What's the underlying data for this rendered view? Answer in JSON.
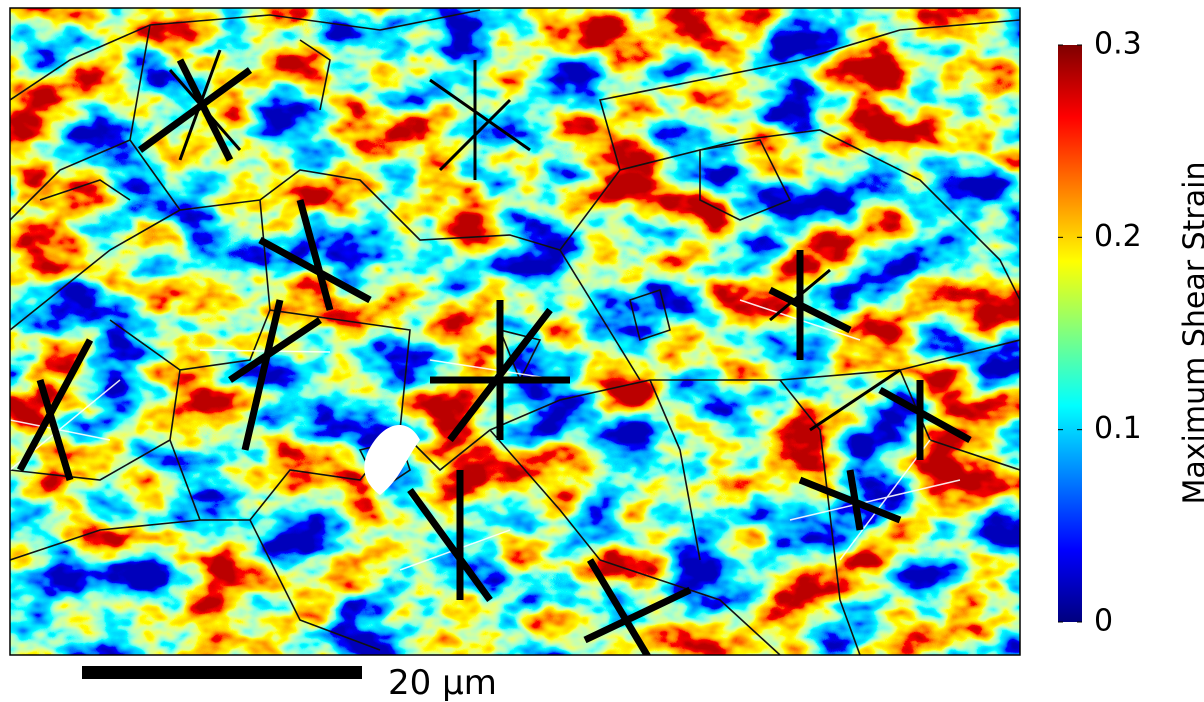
{
  "chart_data": {
    "type": "heatmap",
    "colorbar": {
      "label": "Maximum Shear Strain",
      "lim": [
        0,
        0.3
      ],
      "ticks": [
        0,
        0.1,
        0.2,
        0.3
      ],
      "colormap": "jet"
    },
    "scale_bar": {
      "label": "20 μm"
    }
  }
}
